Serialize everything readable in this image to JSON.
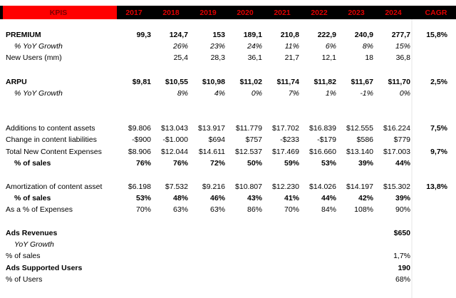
{
  "header": [
    "KPIS",
    "2017",
    "2018",
    "2019",
    "2020",
    "2021",
    "2022",
    "2023",
    "2024",
    "CAGR"
  ],
  "rows": [
    {
      "label": "PREMIUM",
      "cells": [
        "99,3",
        "124,7",
        "153",
        "189,1",
        "210,8",
        "222,9",
        "240,9",
        "277,7",
        "15,8%"
      ]
    },
    {
      "label": "% YoY Growth",
      "cells": [
        null,
        "26%",
        "23%",
        "24%",
        "11%",
        "6%",
        "8%",
        "15%",
        null
      ]
    },
    {
      "label": "New Users (mm)",
      "cells": [
        null,
        "25,4",
        "28,3",
        "36,1",
        "21,7",
        "12,1",
        "18",
        "36,8",
        null
      ]
    },
    {
      "label": "ARPU",
      "cells": [
        "$9,81",
        "$10,55",
        "$10,98",
        "$11,02",
        "$11,74",
        "$11,82",
        "$11,67",
        "$11,70",
        "2,5%"
      ]
    },
    {
      "label": "% YoY Growth",
      "cells": [
        null,
        "8%",
        "4%",
        "0%",
        "7%",
        "1%",
        "-1%",
        "0%",
        null
      ]
    },
    {
      "label": "Additions to content assets",
      "cells": [
        "$9.806",
        "$13.043",
        "$13.917",
        "$11.779",
        "$17.702",
        "$16.839",
        "$12.555",
        "$16.224",
        "7,5%"
      ]
    },
    {
      "label": "Change in content liabilities",
      "cells": [
        "-$900",
        "-$1.000",
        "$694",
        "$757",
        "-$233",
        "-$179",
        "$586",
        "$779",
        null
      ]
    },
    {
      "label": "Total New Content Expenses",
      "cells": [
        "$8.906",
        "$12.044",
        "$14.611",
        "$12.537",
        "$17.469",
        "$16.660",
        "$13.140",
        "$17.003",
        "9,7%"
      ]
    },
    {
      "label": "% of sales",
      "cells": [
        "76%",
        "76%",
        "72%",
        "50%",
        "59%",
        "53%",
        "39%",
        "44%",
        null
      ]
    },
    {
      "label": "Amortization of content asset",
      "cells": [
        "$6.198",
        "$7.532",
        "$9.216",
        "$10.807",
        "$12.230",
        "$14.026",
        "$14.197",
        "$15.302",
        "13,8%"
      ]
    },
    {
      "label": "% of sales",
      "cells": [
        "53%",
        "48%",
        "46%",
        "43%",
        "41%",
        "44%",
        "42%",
        "39%",
        null
      ]
    },
    {
      "label": "As a % of Expenses",
      "cells": [
        "70%",
        "63%",
        "63%",
        "86%",
        "70%",
        "84%",
        "108%",
        "90%",
        null
      ]
    },
    {
      "label": "Ads Revenues",
      "cells": [
        null,
        null,
        null,
        null,
        null,
        null,
        null,
        "$650",
        null
      ]
    },
    {
      "label": "YoY Growth",
      "cells": [
        null,
        null,
        null,
        null,
        null,
        null,
        null,
        null,
        null
      ]
    },
    {
      "label": "% of sales",
      "cells": [
        null,
        null,
        null,
        null,
        null,
        null,
        null,
        "1,7%",
        null
      ]
    },
    {
      "label": "Ads Supported Users",
      "cells": [
        null,
        null,
        null,
        null,
        null,
        null,
        null,
        "190",
        null
      ]
    },
    {
      "label": "% of Users",
      "cells": [
        null,
        null,
        null,
        null,
        null,
        null,
        null,
        "68%",
        null
      ]
    }
  ]
}
